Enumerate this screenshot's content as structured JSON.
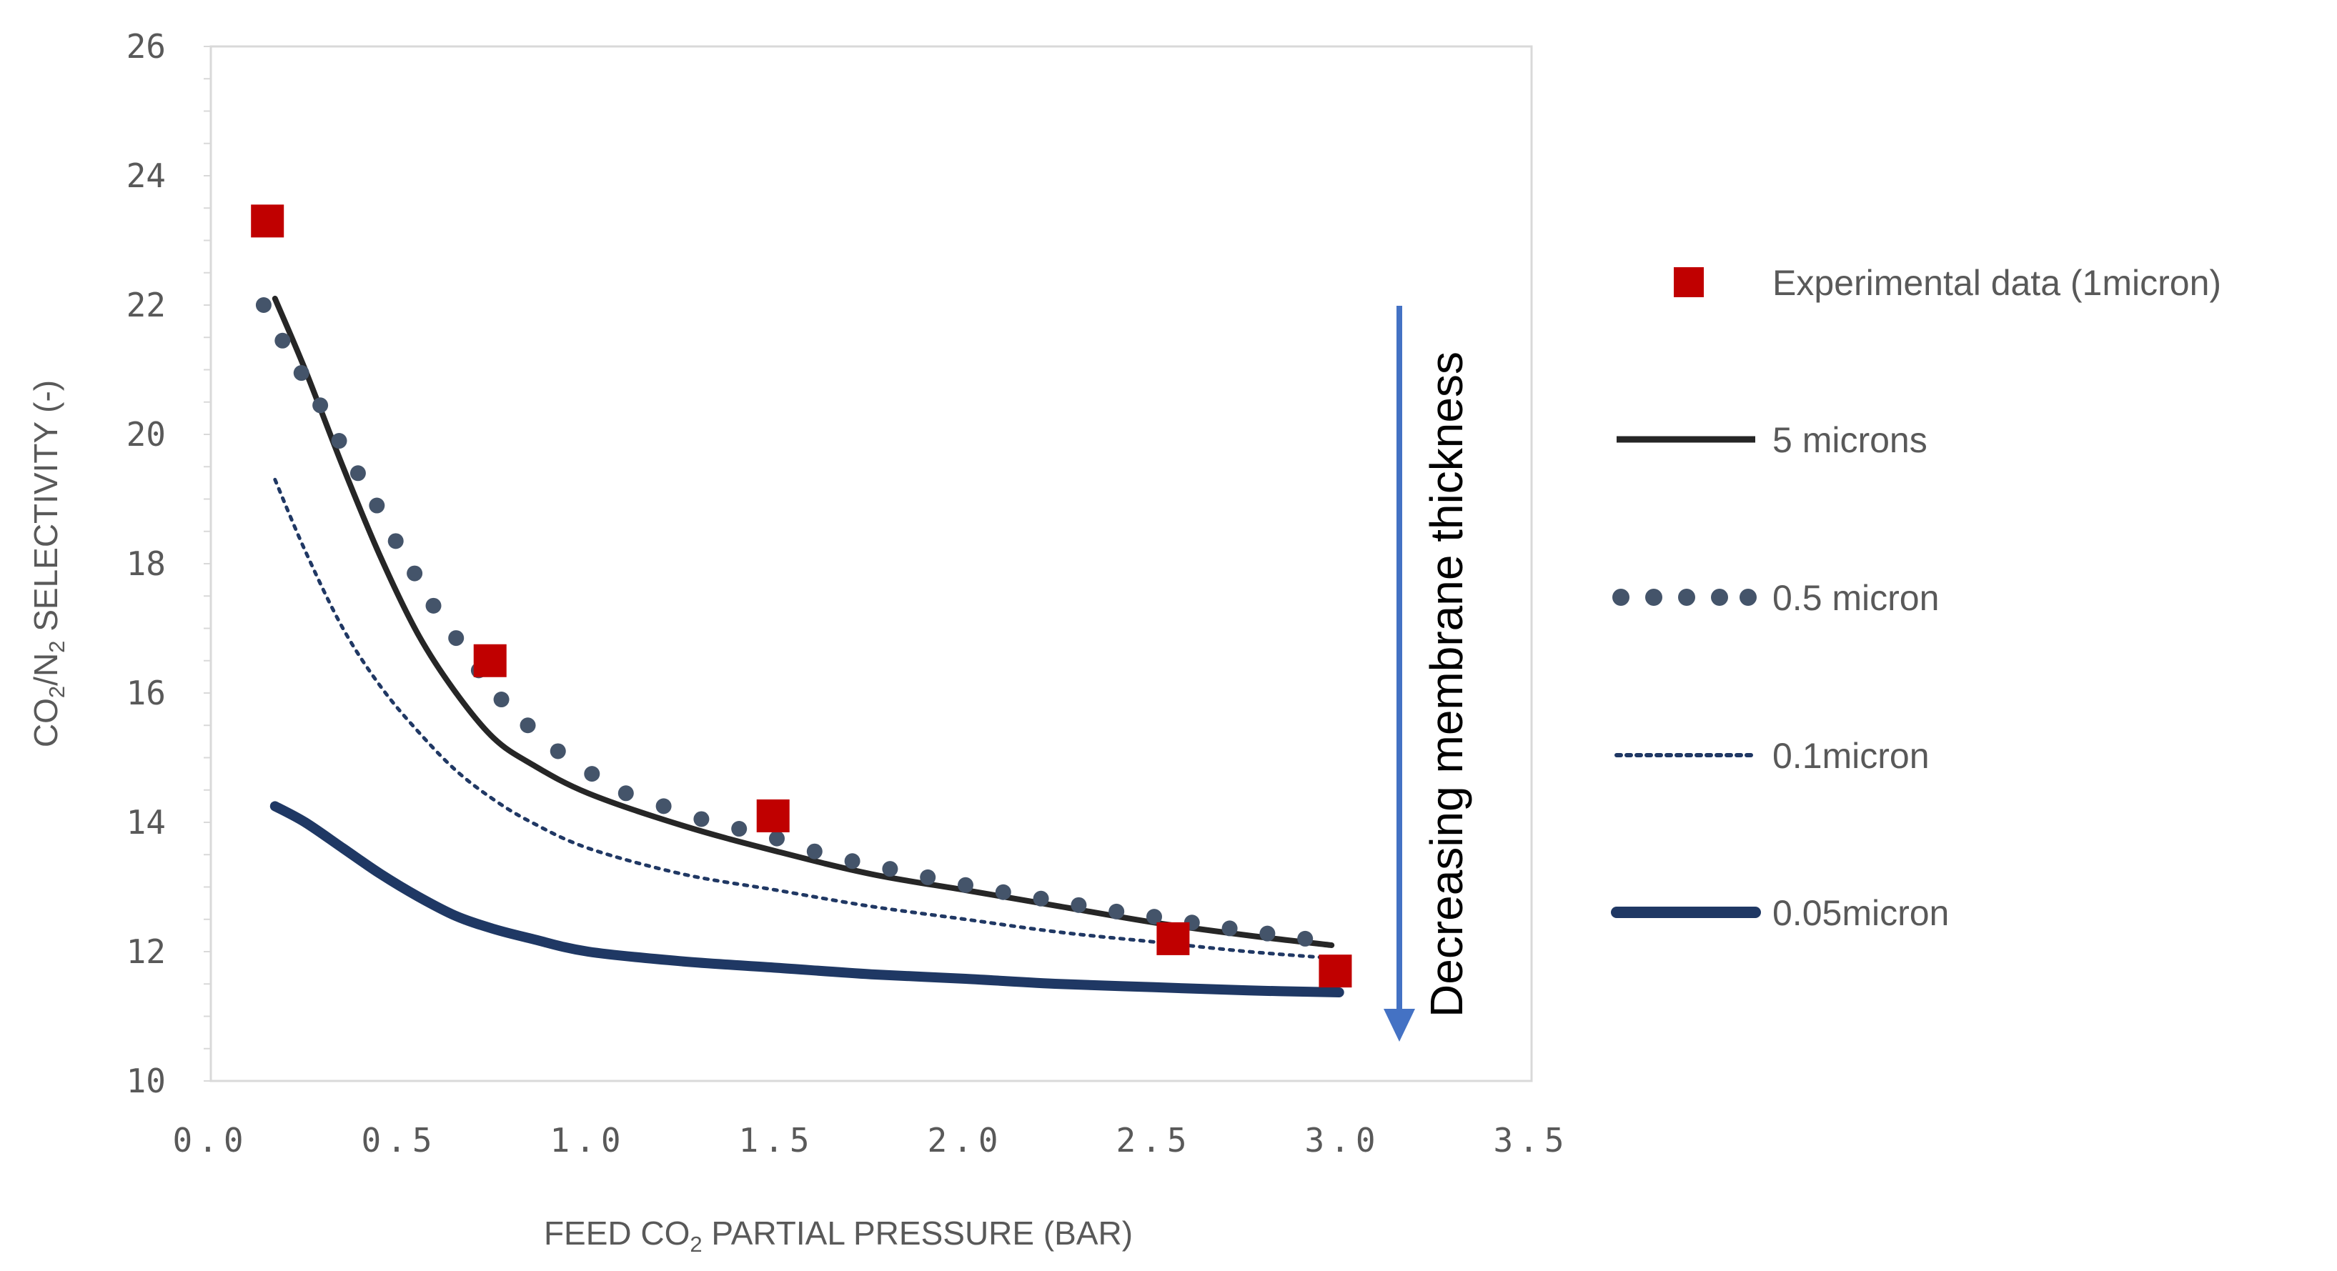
{
  "chart_data": {
    "type": "line",
    "title": "",
    "xlabel": {
      "prefix": "FEED CO",
      "sub": "2",
      "suffix": " PARTIAL PRESSURE (BAR)"
    },
    "ylabel": {
      "p1": "CO",
      "sub1": "2",
      "p2": "/N",
      "sub2": "2",
      "p3": " SELECTIVITY (-)"
    },
    "xlim": [
      0.0,
      3.5
    ],
    "ylim": [
      10,
      26
    ],
    "x_ticks": [
      0.0,
      0.5,
      1.0,
      1.5,
      2.0,
      2.5,
      3.0,
      3.5
    ],
    "x_tick_labels": [
      "0.0",
      "0.5",
      "1.0",
      "1.5",
      "2.0",
      "2.5",
      "3.0",
      "3.5"
    ],
    "y_ticks": [
      10,
      12,
      14,
      16,
      18,
      20,
      22,
      24,
      26
    ],
    "y_tick_labels": [
      "10",
      "12",
      "14",
      "16",
      "18",
      "20",
      "22",
      "24",
      "26"
    ],
    "grid": false,
    "legend_position": "right",
    "experimental": {
      "name": "Experimental data (1micron)",
      "color": "#c00000",
      "x": [
        0.15,
        0.74,
        1.49,
        2.55,
        2.98
      ],
      "y": [
        23.3,
        16.5,
        14.1,
        12.2,
        11.7
      ]
    },
    "series": [
      {
        "name": "5 microns",
        "style": "solid",
        "color": "#262626",
        "x": [
          0.17,
          0.25,
          0.35,
          0.45,
          0.55,
          0.65,
          0.75,
          0.85,
          1.0,
          1.25,
          1.5,
          1.75,
          2.0,
          2.25,
          2.5,
          2.75,
          2.97
        ],
        "y": [
          22.1,
          21.0,
          19.5,
          18.1,
          16.9,
          16.0,
          15.3,
          14.9,
          14.45,
          13.95,
          13.55,
          13.2,
          12.95,
          12.7,
          12.45,
          12.25,
          12.1
        ]
      },
      {
        "name": "0.5 micron",
        "style": "dots",
        "color": "#44546a",
        "x": [
          0.14,
          0.19,
          0.24,
          0.29,
          0.34,
          0.39,
          0.44,
          0.49,
          0.54,
          0.59,
          0.65,
          0.71,
          0.77,
          0.84,
          0.92,
          1.01,
          1.1,
          1.2,
          1.3,
          1.4,
          1.5,
          1.6,
          1.7,
          1.8,
          1.9,
          2.0,
          2.1,
          2.2,
          2.3,
          2.4,
          2.5,
          2.6,
          2.7,
          2.8,
          2.9
        ],
        "y": [
          22.0,
          21.45,
          20.95,
          20.45,
          19.9,
          19.4,
          18.9,
          18.35,
          17.85,
          17.35,
          16.85,
          16.35,
          15.9,
          15.5,
          15.1,
          14.75,
          14.45,
          14.25,
          14.05,
          13.9,
          13.75,
          13.55,
          13.4,
          13.28,
          13.15,
          13.03,
          12.92,
          12.82,
          12.72,
          12.62,
          12.54,
          12.45,
          12.36,
          12.28,
          12.2
        ]
      },
      {
        "name": "0.1micron",
        "style": "dotted",
        "color": "#203864",
        "x": [
          0.17,
          0.25,
          0.35,
          0.45,
          0.55,
          0.65,
          0.75,
          0.85,
          1.0,
          1.25,
          1.5,
          1.75,
          2.0,
          2.25,
          2.5,
          2.75,
          2.97
        ],
        "y": [
          19.3,
          18.2,
          17.0,
          16.1,
          15.4,
          14.8,
          14.35,
          14.0,
          13.6,
          13.2,
          12.95,
          12.7,
          12.5,
          12.3,
          12.15,
          12.0,
          11.9
        ]
      },
      {
        "name": "0.05micron",
        "style": "thick",
        "color": "#1f3864",
        "x": [
          0.17,
          0.25,
          0.35,
          0.45,
          0.55,
          0.65,
          0.75,
          0.85,
          1.0,
          1.25,
          1.5,
          1.75,
          2.0,
          2.25,
          2.5,
          2.75,
          2.99
        ],
        "y": [
          14.25,
          14.0,
          13.6,
          13.2,
          12.85,
          12.55,
          12.35,
          12.2,
          12.0,
          11.85,
          11.75,
          11.65,
          11.58,
          11.5,
          11.45,
          11.4,
          11.37
        ]
      }
    ],
    "annotation": {
      "text": "Decreasing membrane thickness",
      "arrow_color": "#4472c4"
    }
  }
}
